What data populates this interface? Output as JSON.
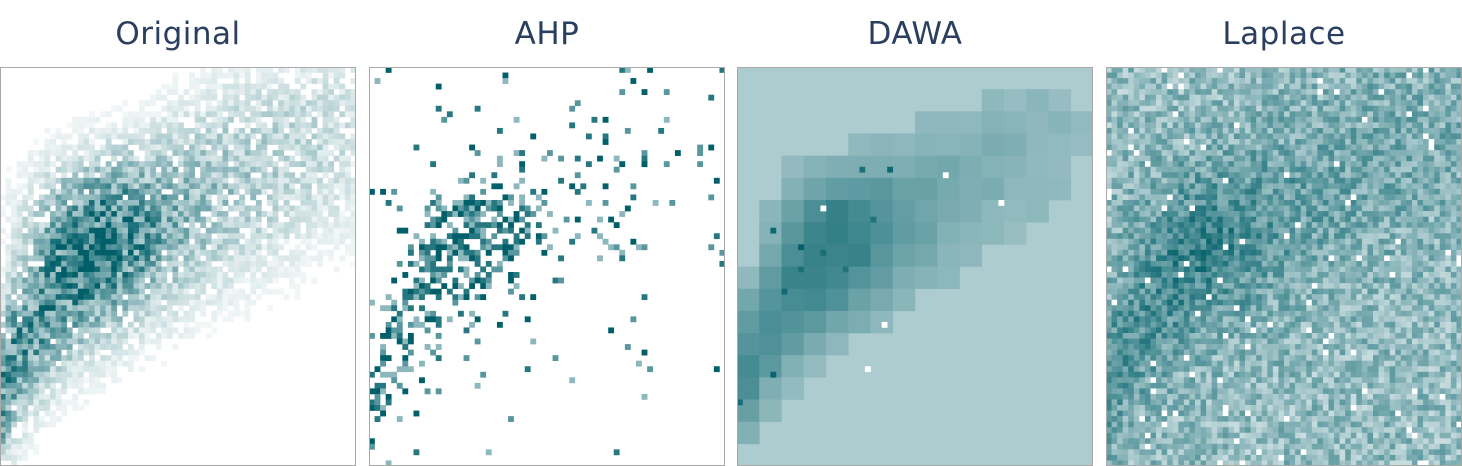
{
  "chart_data": [
    {
      "type": "heatmap",
      "title": "Original",
      "colors": {
        "high": "#005f69",
        "low": "#ffffff"
      }
    },
    {
      "type": "heatmap",
      "title": "AHP",
      "colors": {
        "high": "#005f69",
        "low": "#ffffff"
      }
    },
    {
      "type": "heatmap",
      "title": "DAWA",
      "colors": {
        "high": "#005f69",
        "low": "#ffffff"
      }
    },
    {
      "type": "heatmap",
      "title": "Laplace",
      "colors": {
        "high": "#005f69",
        "low": "#ffffff"
      }
    }
  ]
}
